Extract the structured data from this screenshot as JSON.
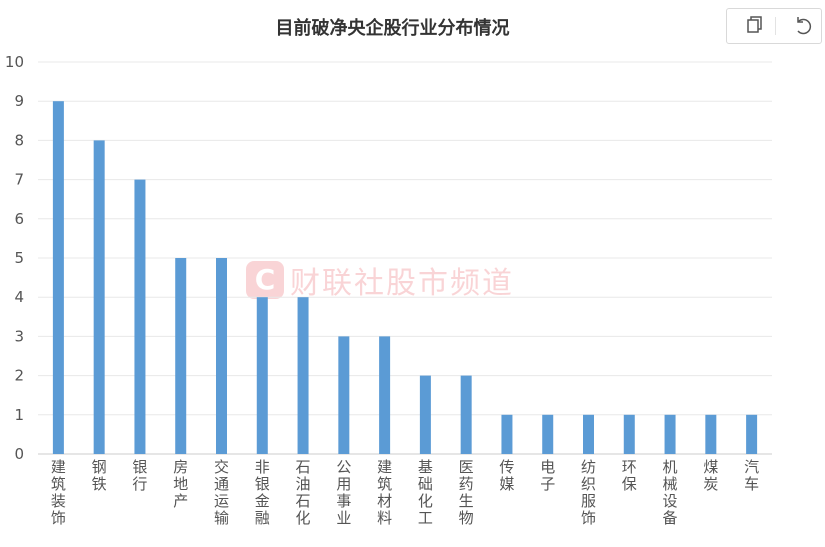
{
  "chart_data": {
    "type": "bar",
    "title": "目前破净央企股行业分布情况",
    "xlabel": "",
    "ylabel": "",
    "ylim": [
      0,
      10
    ],
    "yticks": [
      0,
      1,
      2,
      3,
      4,
      5,
      6,
      7,
      8,
      9,
      10
    ],
    "grid": true,
    "bar_color": "#5b9bd5",
    "categories": [
      "建筑装饰",
      "钢铁",
      "银行",
      "房地产",
      "交通运输",
      "非银金融",
      "石油石化",
      "公用事业",
      "建筑材料",
      "基础化工",
      "医药生物",
      "传媒",
      "电子",
      "纺织服饰",
      "环保",
      "机械设备",
      "煤炭",
      "汽车"
    ],
    "values": [
      9,
      8,
      7,
      5,
      5,
      4,
      4,
      3,
      3,
      2,
      2,
      1,
      1,
      1,
      1,
      1,
      1,
      1
    ]
  },
  "watermark": {
    "logo_letter": "C",
    "text": "财联社股市频道",
    "color": "#e8404a"
  },
  "toolbox": {
    "items": [
      {
        "name": "copy-icon",
        "glyph": "▢"
      },
      {
        "name": "restore-icon",
        "glyph": "↺"
      }
    ]
  }
}
